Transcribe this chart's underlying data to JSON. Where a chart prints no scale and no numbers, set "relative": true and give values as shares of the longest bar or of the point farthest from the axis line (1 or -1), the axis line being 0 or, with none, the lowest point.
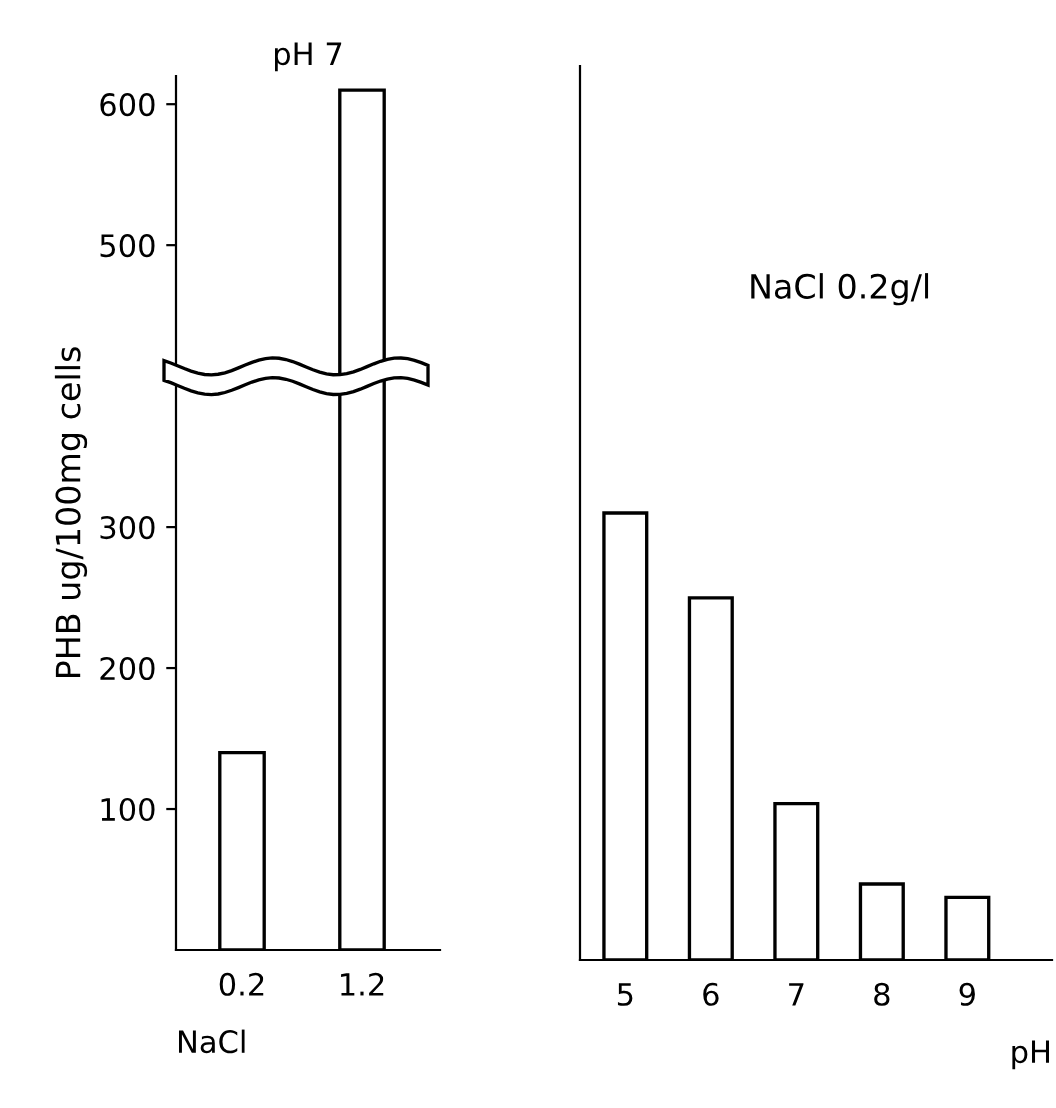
{
  "chart_data": [
    {
      "type": "bar",
      "title": "pH 7",
      "xlabel": "NaCl",
      "ylabel": "PHB ug/100mg cells",
      "categories": [
        "0.2",
        "1.2"
      ],
      "values": [
        140,
        610
      ],
      "color": "#ffffff",
      "ylim": [
        0,
        620
      ],
      "yticks": [
        100,
        200,
        300,
        500,
        600
      ],
      "grid": false,
      "legend": false
    },
    {
      "type": "bar",
      "xlabel": "pH",
      "annotations": [
        "NaCl 0.2g/l"
      ],
      "categories": [
        "5",
        "6",
        "7",
        "8",
        "9"
      ],
      "values": [
        1,
        0.81,
        0.35,
        0.17,
        0.14
      ],
      "relative": true,
      "color": "#ffffff",
      "grid": false,
      "legend": false
    }
  ]
}
